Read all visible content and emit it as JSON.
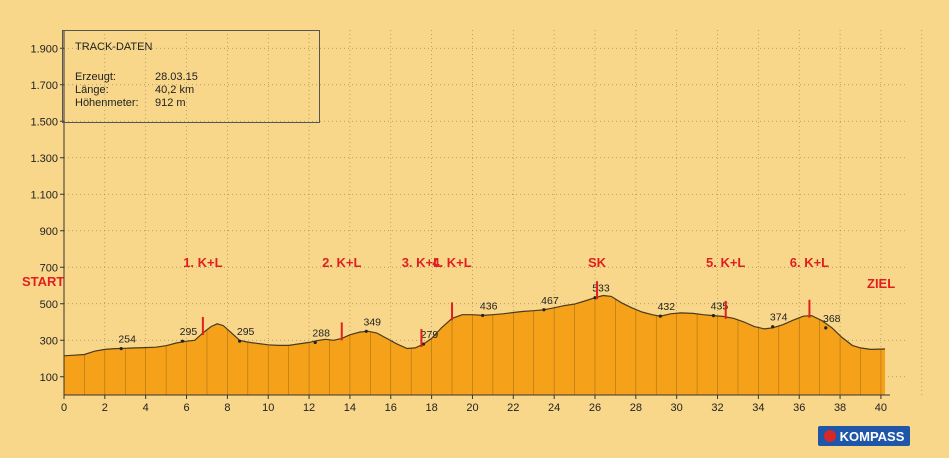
{
  "track_data": {
    "title": "TRACK-DATEN",
    "rows": [
      {
        "key": "Erzeugt:",
        "value": "28.03.15"
      },
      {
        "key": "Länge:",
        "value": "40,2 km"
      },
      {
        "key": "Höhenmeter:",
        "value": "912 m"
      }
    ]
  },
  "brand": {
    "name": "KOMPASS"
  },
  "colors": {
    "fill": "#f5a21a",
    "stroke": "#4a3a1a",
    "marker": "#e02020",
    "background": "#f8d78a"
  },
  "chart_data": {
    "type": "area",
    "xlabel": "",
    "ylabel": "",
    "xlim": [
      0,
      40.2
    ],
    "ylim": [
      0,
      2000
    ],
    "x_ticks": [
      0,
      2,
      4,
      6,
      8,
      10,
      12,
      14,
      16,
      18,
      20,
      22,
      24,
      26,
      28,
      30,
      32,
      34,
      36,
      38,
      40
    ],
    "y_ticks": [
      {
        "value": 100,
        "label": "100"
      },
      {
        "value": 300,
        "label": "300"
      },
      {
        "value": 500,
        "label": "500"
      },
      {
        "value": 700,
        "label": "700"
      },
      {
        "value": 900,
        "label": "900"
      },
      {
        "value": 1100,
        "label": "1.100"
      },
      {
        "value": 1300,
        "label": "1.300"
      },
      {
        "value": 1500,
        "label": "1.500"
      },
      {
        "value": 1700,
        "label": "1.700"
      },
      {
        "value": 1900,
        "label": "1.900"
      }
    ],
    "grid": true,
    "series": [
      {
        "values": [
          [
            0,
            215
          ],
          [
            0.5,
            218
          ],
          [
            1,
            222
          ],
          [
            1.5,
            240
          ],
          [
            2,
            250
          ],
          [
            2.5,
            254
          ],
          [
            3,
            256
          ],
          [
            3.5,
            258
          ],
          [
            4,
            260
          ],
          [
            4.5,
            262
          ],
          [
            5,
            270
          ],
          [
            5.5,
            285
          ],
          [
            6,
            295
          ],
          [
            6.4,
            300
          ],
          [
            6.8,
            340
          ],
          [
            7.2,
            375
          ],
          [
            7.5,
            390
          ],
          [
            7.8,
            380
          ],
          [
            8.2,
            340
          ],
          [
            8.6,
            300
          ],
          [
            9,
            290
          ],
          [
            9.5,
            282
          ],
          [
            10,
            275
          ],
          [
            10.5,
            272
          ],
          [
            11,
            272
          ],
          [
            11.5,
            280
          ],
          [
            12,
            288
          ],
          [
            12.4,
            298
          ],
          [
            12.8,
            305
          ],
          [
            13.2,
            300
          ],
          [
            13.6,
            310
          ],
          [
            14,
            330
          ],
          [
            14.5,
            345
          ],
          [
            14.9,
            349
          ],
          [
            15.3,
            340
          ],
          [
            15.8,
            310
          ],
          [
            16.3,
            280
          ],
          [
            16.8,
            255
          ],
          [
            17.2,
            258
          ],
          [
            17.6,
            279
          ],
          [
            18,
            310
          ],
          [
            18.5,
            370
          ],
          [
            19,
            420
          ],
          [
            19.5,
            440
          ],
          [
            20,
            440
          ],
          [
            20.5,
            436
          ],
          [
            21,
            440
          ],
          [
            21.5,
            445
          ],
          [
            22,
            452
          ],
          [
            22.5,
            458
          ],
          [
            23,
            462
          ],
          [
            23.5,
            467
          ],
          [
            24,
            478
          ],
          [
            24.5,
            490
          ],
          [
            25,
            498
          ],
          [
            25.5,
            515
          ],
          [
            26,
            533
          ],
          [
            26.4,
            545
          ],
          [
            26.8,
            540
          ],
          [
            27.3,
            505
          ],
          [
            27.8,
            478
          ],
          [
            28.3,
            455
          ],
          [
            28.8,
            440
          ],
          [
            29.2,
            432
          ],
          [
            29.7,
            445
          ],
          [
            30.2,
            450
          ],
          [
            30.8,
            447
          ],
          [
            31.3,
            440
          ],
          [
            31.8,
            435
          ],
          [
            32.3,
            430
          ],
          [
            32.8,
            420
          ],
          [
            33.3,
            400
          ],
          [
            33.8,
            375
          ],
          [
            34.3,
            362
          ],
          [
            34.7,
            368
          ],
          [
            35.2,
            385
          ],
          [
            35.7,
            410
          ],
          [
            36.2,
            432
          ],
          [
            36.6,
            435
          ],
          [
            37.1,
            408
          ],
          [
            37.6,
            368
          ],
          [
            38.1,
            315
          ],
          [
            38.6,
            272
          ],
          [
            39,
            258
          ],
          [
            39.5,
            250
          ],
          [
            40.2,
            252
          ]
        ]
      }
    ],
    "point_labels": [
      {
        "x": 2.8,
        "y": 254,
        "label": "254"
      },
      {
        "x": 5.8,
        "y": 295,
        "label": "295"
      },
      {
        "x": 8.6,
        "y": 295,
        "label": "295"
      },
      {
        "x": 12.3,
        "y": 288,
        "label": "288"
      },
      {
        "x": 14.8,
        "y": 349,
        "label": "349"
      },
      {
        "x": 17.6,
        "y": 279,
        "label": "279"
      },
      {
        "x": 20.5,
        "y": 436,
        "label": "436"
      },
      {
        "x": 23.5,
        "y": 467,
        "label": "467"
      },
      {
        "x": 26.0,
        "y": 533,
        "label": "533"
      },
      {
        "x": 29.2,
        "y": 432,
        "label": "432"
      },
      {
        "x": 31.8,
        "y": 435,
        "label": "435"
      },
      {
        "x": 34.7,
        "y": 374,
        "label": "374"
      },
      {
        "x": 37.3,
        "y": 368,
        "label": "368"
      }
    ],
    "annotations": [
      {
        "x": 6.8,
        "label": "1. K+L"
      },
      {
        "x": 13.6,
        "label": "2. K+L"
      },
      {
        "x": 17.5,
        "label": "3. K+L"
      },
      {
        "x": 19.0,
        "label": "4. K+L"
      },
      {
        "x": 26.1,
        "label": "SK"
      },
      {
        "x": 32.4,
        "label": "5. K+L"
      },
      {
        "x": 36.5,
        "label": "6. K+L"
      }
    ],
    "start_label": "START",
    "end_label": "ZIEL"
  }
}
